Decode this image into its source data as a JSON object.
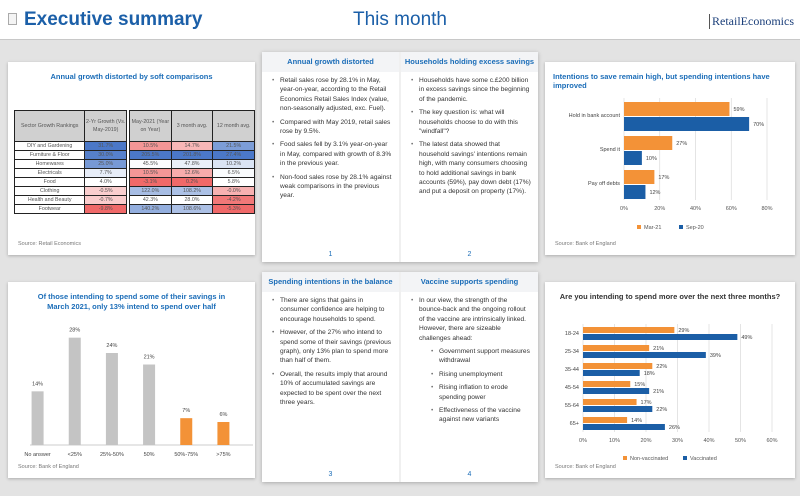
{
  "header": {
    "title": "Executive summary",
    "subtitle": "This month",
    "logo": "RetailEconomics"
  },
  "table_card": {
    "title": "Annual growth distorted by soft comparisons",
    "source": "Source: Retail Economics",
    "columns": [
      "Sector Growth Rankings",
      "2-Yr Growth (Vs. May-2019)",
      "May-2021 (Year on Year)",
      "3 month avg.",
      "12 month avg."
    ],
    "rows": [
      [
        "DIY and Gardening",
        "31.7%",
        "10.5%",
        "14.7%",
        "21.5%"
      ],
      [
        "Furniture & Floor",
        "30.0%",
        "205.5%",
        "201.8%",
        "27.4%"
      ],
      [
        "Homewares",
        "25.0%",
        "45.5%",
        "47.8%",
        "10.2%"
      ],
      [
        "Electricals",
        "7.7%",
        "10.5%",
        "12.6%",
        "6.5%"
      ],
      [
        "Food",
        "4.0%",
        "-3.1%",
        "0.2%",
        "5.8%"
      ],
      [
        "Clothing",
        "-0.5%",
        "122.0%",
        "108.2%",
        "-0.0%"
      ],
      [
        "Health and Beauty",
        "-0.7%",
        "42.3%",
        "28.0%",
        "-4.2%"
      ],
      [
        "Footwear",
        "-9.8%",
        "140.2%",
        "108.6%",
        "-5.3%"
      ]
    ]
  },
  "booklet_top": {
    "pages": [
      {
        "title": "Annual growth distorted",
        "number": "1",
        "bullets": [
          "Retail sales rose by 28.1% in May, year-on-year, according to the Retail Economics Retail Sales Index (value, non-seasonally adjusted, exc. Fuel).",
          "Compared with May 2019, retail sales rose by 9.5%.",
          "Food sales fell by 3.1% year-on-year in May, compared with growth of 8.3% in the previous year.",
          "Non-food sales rose by 28.1% against weak comparisons in the previous year."
        ]
      },
      {
        "title": "Households holding excess savings",
        "number": "2",
        "bullets": [
          "Households have some c.£200 billion in excess savings since the beginning of the pandemic.",
          "The key question is: what will households choose to do with this \"windfall\"?",
          "The latest data showed that household savings' intentions remain high, with many consumers choosing to hold additional savings in bank accounts (59%), pay down debt (17%) and put a deposit on property (17%)."
        ]
      }
    ]
  },
  "booklet_bottom": {
    "pages": [
      {
        "title": "Spending intentions in the balance",
        "number": "3",
        "bullets": [
          "There are signs that gains in consumer confidence are helping to encourage households to spend.",
          "However, of the 27% who intend to spend some of their savings (previous graph), only 13% plan to spend more than half of them.",
          "Overall, the results imply that around 10% of accumulated savings are expected to be spent over the next three years."
        ]
      },
      {
        "title": "Vaccine supports spending",
        "number": "4",
        "bullets": [
          "In our view, the strength of the bounce-back and the ongoing rollout of the vaccine are intrinsically linked. However, there are sizeable challenges ahead:"
        ],
        "sub_bullets": [
          "Government support measures withdrawal",
          "Rising unemployment",
          "Rising inflation to erode spending power",
          "Effectiveness of the vaccine against new variants"
        ]
      }
    ]
  },
  "colors": {
    "orange": "#f39237",
    "blue": "#1b5ea6",
    "grey": "#c4c4c4",
    "accent": "#1b6db8"
  },
  "chart_data": [
    {
      "type": "bar",
      "orientation": "horizontal",
      "title": "Intentions to save remain high, but spending intentions have improved",
      "source": "Source: Bank of England",
      "categories": [
        "Hold in bank account",
        "Spend it",
        "Pay off debts"
      ],
      "series": [
        {
          "name": "Mar-21",
          "values": [
            59,
            27,
            17
          ]
        },
        {
          "name": "Sep-20",
          "values": [
            70,
            10,
            12
          ]
        }
      ],
      "xlim": [
        0,
        80
      ],
      "ticks": [
        "0%",
        "20%",
        "40%",
        "60%",
        "80%"
      ],
      "legend": "bottom",
      "grid": true
    },
    {
      "type": "bar",
      "title": "Of those intending to spend some of their savings in March 2021, only 13% intend to spend over half",
      "source": "Source: Bank of England",
      "categories": [
        "No answer",
        "<25%",
        "25%-50%",
        "50%",
        "50%-75%",
        ">75%"
      ],
      "values": [
        14,
        28,
        24,
        21,
        7,
        6
      ],
      "highlight": [
        false,
        false,
        false,
        false,
        true,
        true
      ],
      "grid": false
    },
    {
      "type": "bar",
      "orientation": "horizontal",
      "title": "Are you intending to spend more over the next three months?",
      "source": "Source: Bank of England",
      "categories": [
        "18-24",
        "25-34",
        "35-44",
        "45-54",
        "55-64",
        "65+"
      ],
      "series": [
        {
          "name": "Non-vaccinated",
          "values": [
            29,
            21,
            22,
            15,
            17,
            14
          ]
        },
        {
          "name": "Vaccinated",
          "values": [
            49,
            39,
            18,
            21,
            22,
            26
          ]
        }
      ],
      "xlim": [
        0,
        60
      ],
      "ticks": [
        "0%",
        "10%",
        "20%",
        "30%",
        "40%",
        "50%",
        "60%"
      ],
      "legend": "bottom",
      "grid": true
    }
  ]
}
